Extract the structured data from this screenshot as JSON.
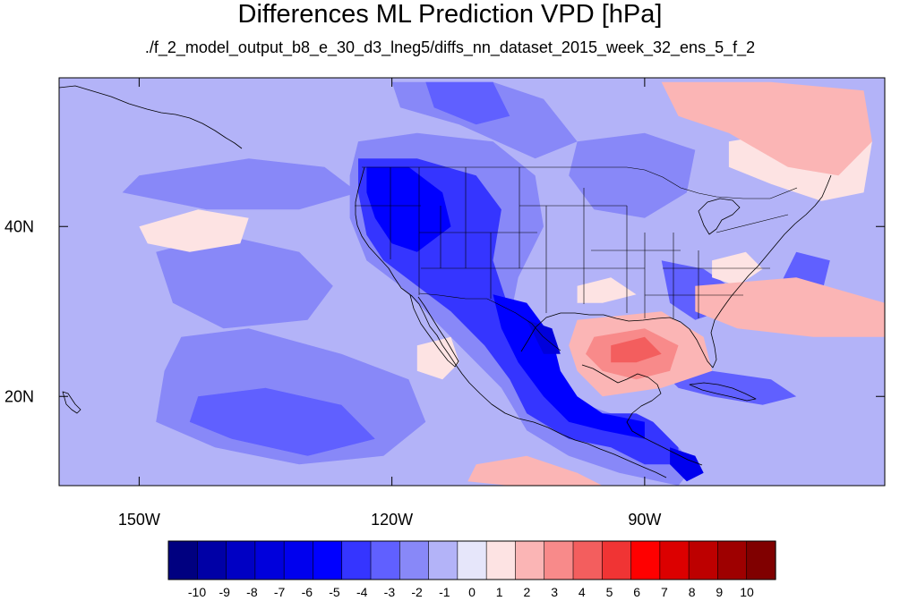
{
  "title": "Differences ML Prediction VPD [hPa]",
  "subtitle": "./f_2_model_output_b8_e_30_d3_lneg5/diffs_nn_dataset_2015_week_32_ens_5_f_2",
  "map": {
    "lon_range": [
      -159.5,
      -61.5
    ],
    "lat_range": [
      9.5,
      57.5
    ],
    "lon_ticks": [
      {
        "value": -150,
        "label": "150W"
      },
      {
        "value": -120,
        "label": "120W"
      },
      {
        "value": -90,
        "label": "90W"
      }
    ],
    "lat_ticks": [
      {
        "value": 40,
        "label": "40N"
      },
      {
        "value": 20,
        "label": "20N"
      }
    ]
  },
  "colorbar": {
    "labels": [
      "-10",
      "-9",
      "-8",
      "-7",
      "-6",
      "-5",
      "-4",
      "-3",
      "-2",
      "-1",
      "0",
      "1",
      "2",
      "3",
      "4",
      "5",
      "6",
      "7",
      "8",
      "9",
      "10"
    ],
    "colors": [
      "#000080",
      "#0000a6",
      "#0000c4",
      "#0000dc",
      "#0000ee",
      "#0000ff",
      "#3535ff",
      "#6060ff",
      "#8888f8",
      "#b3b3f8",
      "#e6e6fa",
      "#fde3e3",
      "#fbb5b5",
      "#f88a8a",
      "#f35e5e",
      "#f03434",
      "#ff0000",
      "#dc0000",
      "#bd0000",
      "#9e0000",
      "#800000"
    ]
  },
  "chart_data": {
    "type": "heatmap",
    "title": "Differences ML Prediction VPD [hPa]",
    "subtitle": "./f_2_model_output_b8_e_30_d3_lneg5/diffs_nn_dataset_2015_week_32_ens_5_f_2",
    "x_ticks": [
      "150W",
      "120W",
      "90W"
    ],
    "y_ticks": [
      "40N",
      "20N"
    ],
    "legend": "bottom",
    "colorbar_values": [
      -10,
      -9,
      -8,
      -7,
      -6,
      -5,
      -4,
      -3,
      -2,
      -1,
      0,
      1,
      2,
      3,
      4,
      5,
      6,
      7,
      8,
      9,
      10
    ],
    "regions": [
      {
        "value": -1,
        "polygon": [
          [
            -159.5,
            57.5
          ],
          [
            -61.5,
            57.5
          ],
          [
            -61.5,
            9.5
          ],
          [
            -159.5,
            9.5
          ]
        ]
      },
      {
        "value": -2,
        "polygon": [
          [
            -150,
            46
          ],
          [
            -137,
            48
          ],
          [
            -128,
            47
          ],
          [
            -124,
            44
          ],
          [
            -131,
            42
          ],
          [
            -142,
            42
          ],
          [
            -152,
            44
          ]
        ]
      },
      {
        "value": -2,
        "polygon": [
          [
            -148,
            37
          ],
          [
            -140,
            39
          ],
          [
            -131,
            37
          ],
          [
            -127,
            33
          ],
          [
            -130,
            29
          ],
          [
            -140,
            28
          ],
          [
            -146,
            31
          ]
        ]
      },
      {
        "value": -2,
        "polygon": [
          [
            -145,
            27
          ],
          [
            -137,
            28
          ],
          [
            -126,
            25
          ],
          [
            -118,
            22
          ],
          [
            -116,
            17
          ],
          [
            -121,
            13
          ],
          [
            -131,
            12
          ],
          [
            -141,
            14
          ],
          [
            -148,
            17
          ],
          [
            -147,
            23
          ]
        ]
      },
      {
        "value": -3,
        "polygon": [
          [
            -143,
            20
          ],
          [
            -135,
            21
          ],
          [
            -126,
            19
          ],
          [
            -122,
            15
          ],
          [
            -130,
            13
          ],
          [
            -139,
            15
          ],
          [
            -144,
            17
          ]
        ]
      },
      {
        "value": -2,
        "polygon": [
          [
            -120,
            57
          ],
          [
            -108,
            57
          ],
          [
            -102,
            55
          ],
          [
            -98,
            50
          ],
          [
            -103,
            48
          ],
          [
            -112,
            52
          ],
          [
            -119,
            54
          ]
        ]
      },
      {
        "value": -3,
        "polygon": [
          [
            -116,
            57
          ],
          [
            -108,
            57
          ],
          [
            -106,
            53
          ],
          [
            -110,
            52
          ],
          [
            -115,
            54
          ]
        ]
      },
      {
        "value": -2,
        "polygon": [
          [
            -124,
            50
          ],
          [
            -117,
            51
          ],
          [
            -108,
            50
          ],
          [
            -103,
            46
          ],
          [
            -102,
            40
          ],
          [
            -105,
            34
          ],
          [
            -106,
            29
          ],
          [
            -104,
            24
          ],
          [
            -100,
            20
          ],
          [
            -94,
            18
          ],
          [
            -88,
            16
          ],
          [
            -84,
            12
          ],
          [
            -86,
            9.5
          ],
          [
            -93,
            11
          ],
          [
            -99,
            13
          ],
          [
            -104,
            16
          ],
          [
            -107,
            21
          ],
          [
            -110,
            24
          ],
          [
            -115,
            29
          ],
          [
            -119,
            33
          ],
          [
            -123,
            36
          ],
          [
            -125,
            41
          ],
          [
            -125,
            46
          ]
        ]
      },
      {
        "value": -4,
        "polygon": [
          [
            -124,
            48
          ],
          [
            -117,
            48
          ],
          [
            -110,
            46
          ],
          [
            -107,
            42
          ],
          [
            -108,
            36
          ],
          [
            -106,
            30
          ],
          [
            -104,
            25
          ],
          [
            -101,
            20
          ],
          [
            -95,
            18
          ],
          [
            -91,
            18
          ],
          [
            -89,
            17
          ],
          [
            -86,
            14
          ],
          [
            -86,
            12
          ],
          [
            -90,
            12
          ],
          [
            -94,
            14
          ],
          [
            -99,
            15
          ],
          [
            -104,
            18
          ],
          [
            -106,
            22
          ],
          [
            -109,
            26
          ],
          [
            -113,
            30
          ],
          [
            -117,
            33
          ],
          [
            -121,
            36
          ],
          [
            -123,
            39
          ],
          [
            -124,
            44
          ]
        ]
      },
      {
        "value": -5,
        "polygon": [
          [
            -123,
            47
          ],
          [
            -118,
            47
          ],
          [
            -114,
            44
          ],
          [
            -113,
            40
          ],
          [
            -117,
            37
          ],
          [
            -120,
            38
          ],
          [
            -122,
            41
          ],
          [
            -123,
            44
          ]
        ]
      },
      {
        "value": -5,
        "polygon": [
          [
            -108,
            32
          ],
          [
            -104,
            31
          ],
          [
            -101,
            27
          ],
          [
            -100,
            23
          ],
          [
            -98,
            20
          ],
          [
            -95,
            18
          ],
          [
            -90,
            17
          ],
          [
            -90,
            15
          ],
          [
            -95,
            16
          ],
          [
            -99,
            17
          ],
          [
            -102,
            20
          ],
          [
            -105,
            24
          ],
          [
            -107,
            28
          ]
        ]
      },
      {
        "value": -7,
        "polygon": [
          [
            -104,
            29
          ],
          [
            -101,
            28
          ],
          [
            -100,
            25
          ],
          [
            -102,
            25
          ],
          [
            -103,
            27
          ]
        ]
      },
      {
        "value": -6,
        "polygon": [
          [
            -87,
            14
          ],
          [
            -84,
            13
          ],
          [
            -83,
            11
          ],
          [
            -85,
            10
          ],
          [
            -87,
            12
          ]
        ]
      },
      {
        "value": -2,
        "polygon": [
          [
            -98,
            50
          ],
          [
            -90,
            51
          ],
          [
            -84,
            49
          ],
          [
            -85,
            44
          ],
          [
            -90,
            41
          ],
          [
            -96,
            42
          ],
          [
            -99,
            46
          ]
        ]
      },
      {
        "value": -3,
        "polygon": [
          [
            -88,
            36
          ],
          [
            -83,
            35
          ],
          [
            -80,
            33
          ],
          [
            -81,
            30
          ],
          [
            -84,
            29
          ],
          [
            -87,
            31
          ]
        ]
      },
      {
        "value": -3,
        "polygon": [
          [
            -72,
            37
          ],
          [
            -68,
            36
          ],
          [
            -69,
            32
          ],
          [
            -72,
            31
          ],
          [
            -74,
            33
          ]
        ]
      },
      {
        "value": -3,
        "polygon": [
          [
            -87,
            22
          ],
          [
            -82,
            23
          ],
          [
            -75,
            22
          ],
          [
            -72,
            20
          ],
          [
            -76,
            19
          ],
          [
            -82,
            20
          ],
          [
            -86,
            21
          ]
        ]
      },
      {
        "value": 1,
        "polygon": [
          [
            -98,
            33
          ],
          [
            -94,
            34
          ],
          [
            -91,
            32
          ],
          [
            -95,
            31
          ],
          [
            -98,
            31
          ]
        ]
      },
      {
        "value": 1,
        "polygon": [
          [
            -82,
            36
          ],
          [
            -78,
            37
          ],
          [
            -76,
            35
          ],
          [
            -79,
            33
          ],
          [
            -82,
            34
          ]
        ]
      },
      {
        "value": 1,
        "polygon": [
          [
            -80,
            50
          ],
          [
            -68,
            52
          ],
          [
            -63,
            50
          ],
          [
            -64,
            44
          ],
          [
            -69,
            43
          ],
          [
            -75,
            45
          ],
          [
            -80,
            47
          ]
        ]
      },
      {
        "value": 2,
        "polygon": [
          [
            -88,
            57
          ],
          [
            -75,
            57
          ],
          [
            -64,
            56
          ],
          [
            -63,
            50
          ],
          [
            -67,
            46
          ],
          [
            -73,
            47
          ],
          [
            -80,
            51
          ],
          [
            -86,
            53
          ]
        ]
      },
      {
        "value": 2,
        "polygon": [
          [
            -84,
            33
          ],
          [
            -72,
            34
          ],
          [
            -61.5,
            31
          ],
          [
            -61.5,
            27
          ],
          [
            -70,
            27
          ],
          [
            -79,
            28
          ],
          [
            -84,
            30
          ]
        ]
      },
      {
        "value": 2,
        "polygon": [
          [
            -98,
            29
          ],
          [
            -88,
            30
          ],
          [
            -83,
            27
          ],
          [
            -82,
            23
          ],
          [
            -88,
            21
          ],
          [
            -95,
            20
          ],
          [
            -98,
            23
          ],
          [
            -99,
            26
          ]
        ]
      },
      {
        "value": 3,
        "polygon": [
          [
            -96,
            27
          ],
          [
            -90,
            28
          ],
          [
            -86,
            26
          ],
          [
            -87,
            23
          ],
          [
            -91,
            22
          ],
          [
            -95,
            23
          ],
          [
            -97,
            25
          ]
        ]
      },
      {
        "value": 4,
        "polygon": [
          [
            -94,
            26
          ],
          [
            -90,
            27
          ],
          [
            -88,
            25
          ],
          [
            -91,
            24
          ],
          [
            -94,
            24
          ]
        ]
      },
      {
        "value": 1,
        "polygon": [
          [
            -150,
            40
          ],
          [
            -143,
            42
          ],
          [
            -137,
            41
          ],
          [
            -138,
            38
          ],
          [
            -144,
            37
          ],
          [
            -149,
            38
          ]
        ]
      },
      {
        "value": 2,
        "polygon": [
          [
            -110,
            12
          ],
          [
            -104,
            13
          ],
          [
            -98,
            11
          ],
          [
            -95,
            9.5
          ],
          [
            -106,
            9.5
          ],
          [
            -111,
            10
          ]
        ]
      },
      {
        "value": 1,
        "polygon": [
          [
            -117,
            26
          ],
          [
            -113,
            27
          ],
          [
            -112,
            24
          ],
          [
            -114,
            22
          ],
          [
            -117,
            23
          ]
        ]
      }
    ]
  }
}
